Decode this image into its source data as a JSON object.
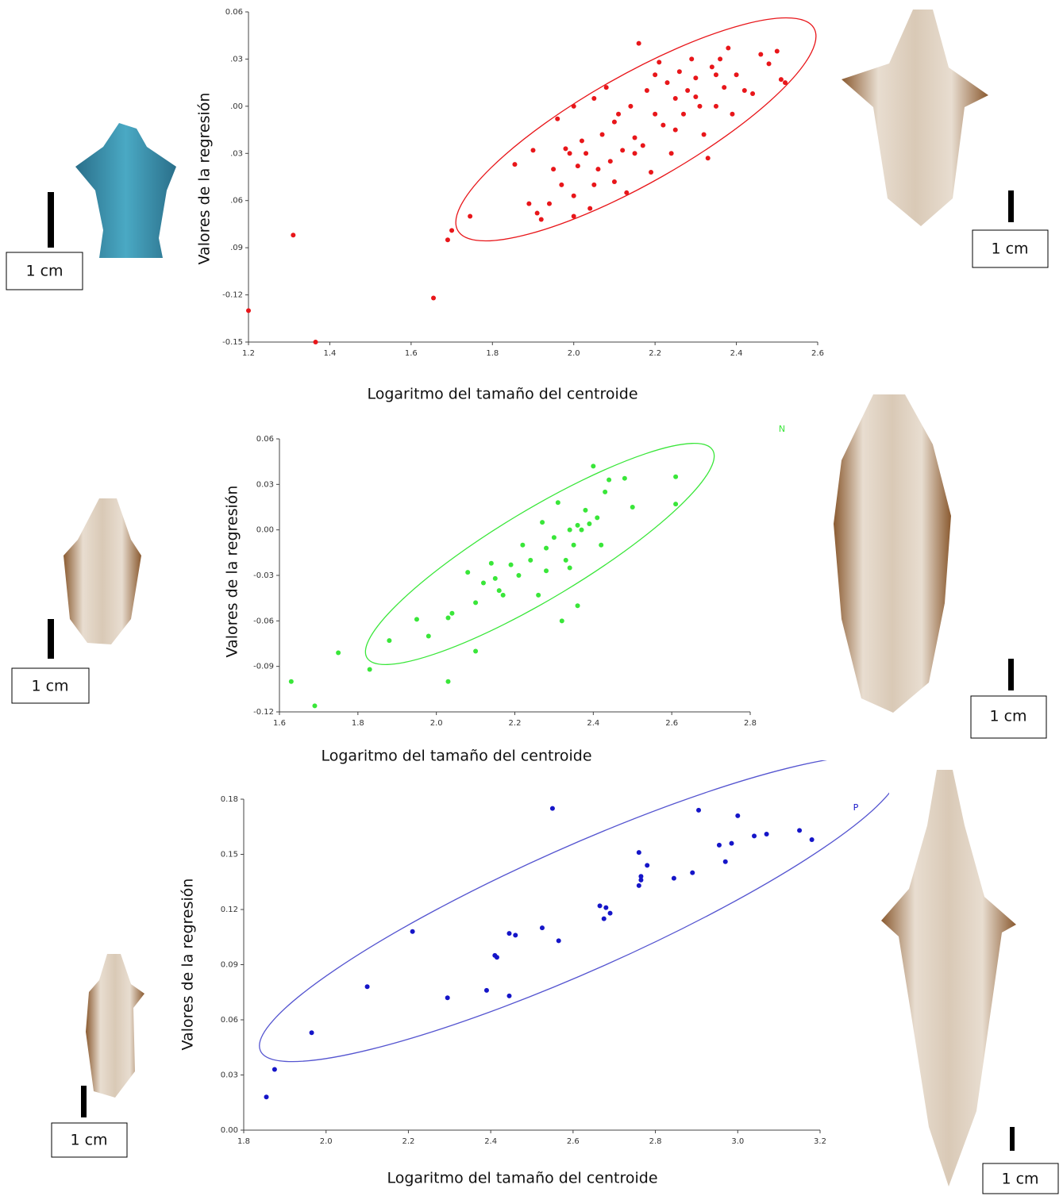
{
  "chart_data": [
    {
      "type": "scatter",
      "color": "#e8161a",
      "xlabel": "Logaritmo del tamaño del centroide",
      "ylabel": "Valores de la regresión",
      "xlim": [
        1.2,
        2.6
      ],
      "ylim": [
        -0.15,
        0.06
      ],
      "xticks": [
        1.2,
        1.4,
        1.6,
        1.8,
        {
          "value": 2,
          "label": "2.0"
        },
        2.2,
        2.4,
        2.6
      ],
      "yticks": [
        0.06,
        {
          "value": 0.03,
          "label": ".03"
        },
        {
          "value": 0,
          "label": ".00"
        },
        {
          "value": -0.03,
          "label": ".03"
        },
        {
          "value": -0.06,
          "label": ".06"
        },
        {
          "value": -0.09,
          "label": ".09"
        },
        -0.12,
        -0.15
      ],
      "x": [
        1.2,
        1.31,
        1.365,
        1.655,
        1.69,
        1.7,
        1.745,
        1.855,
        1.89,
        1.9,
        1.91,
        1.92,
        1.94,
        1.96,
        1.97,
        1.98,
        1.99,
        2.0,
        2.0,
        2.01,
        2.02,
        2.03,
        2.04,
        2.05,
        2.06,
        2.07,
        2.08,
        2.09,
        2.1,
        2.11,
        2.12,
        2.13,
        2.14,
        2.15,
        2.16,
        2.17,
        2.18,
        2.19,
        2.2,
        2.21,
        2.22,
        2.23,
        2.24,
        2.25,
        2.26,
        2.27,
        2.28,
        2.29,
        2.3,
        2.31,
        2.32,
        2.33,
        2.34,
        2.35,
        2.36,
        2.37,
        2.38,
        2.39,
        2.4,
        2.42,
        2.44,
        2.46,
        2.48,
        2.5,
        2.51,
        2.52,
        1.95,
        2.05,
        2.15,
        2.25,
        2.35,
        2.0,
        2.1,
        2.2,
        2.3
      ],
      "values": [
        -0.13,
        -0.082,
        -0.15,
        -0.122,
        -0.085,
        -0.079,
        -0.07,
        -0.037,
        -0.062,
        -0.028,
        -0.068,
        -0.072,
        -0.062,
        -0.008,
        -0.05,
        -0.027,
        -0.03,
        0,
        -0.057,
        -0.038,
        -0.022,
        -0.03,
        -0.065,
        0.005,
        -0.04,
        -0.018,
        0.012,
        -0.035,
        -0.01,
        -0.005,
        -0.028,
        -0.055,
        0,
        -0.02,
        0.04,
        -0.025,
        0.01,
        -0.042,
        0.02,
        0.028,
        -0.012,
        0.015,
        -0.03,
        0.005,
        0.022,
        -0.005,
        0.01,
        0.03,
        0.018,
        0,
        -0.018,
        -0.033,
        0.025,
        0.02,
        0.03,
        0.012,
        0.037,
        -0.005,
        0.02,
        0.01,
        0.008,
        0.033,
        0.027,
        0.035,
        0.017,
        0.015,
        -0.04,
        -0.05,
        -0.03,
        -0.015,
        0,
        -0.07,
        -0.048,
        -0.005,
        0.006
      ]
    },
    {
      "type": "scatter",
      "color": "#39e639",
      "annotation": "N",
      "xlabel": "Logaritmo del tamaño del centroide",
      "ylabel": "Valores de la regresión",
      "xlim": [
        1.6,
        2.8
      ],
      "ylim": [
        -0.12,
        0.06
      ],
      "xticks": [
        1.6,
        1.8,
        {
          "value": 2,
          "label": "2.0"
        },
        2.2,
        2.4,
        2.6,
        2.8
      ],
      "yticks": [
        0.06,
        0.03,
        {
          "value": 0,
          "label": "0.00"
        },
        -0.03,
        -0.06,
        -0.09,
        -0.12
      ],
      "x": [
        1.63,
        1.69,
        1.75,
        1.83,
        1.88,
        1.95,
        1.98,
        2.03,
        2.03,
        2.04,
        2.08,
        2.1,
        2.1,
        2.12,
        2.14,
        2.15,
        2.16,
        2.17,
        2.19,
        2.21,
        2.22,
        2.24,
        2.26,
        2.27,
        2.28,
        2.3,
        2.31,
        2.32,
        2.33,
        2.34,
        2.34,
        2.35,
        2.36,
        2.37,
        2.38,
        2.39,
        2.4,
        2.41,
        2.42,
        2.43,
        2.44,
        2.48,
        2.5,
        2.61,
        2.61,
        2.36,
        2.28
      ],
      "values": [
        -0.1,
        -0.116,
        -0.081,
        -0.092,
        -0.073,
        -0.059,
        -0.07,
        -0.058,
        -0.1,
        -0.055,
        -0.028,
        -0.048,
        -0.08,
        -0.035,
        -0.022,
        -0.032,
        -0.04,
        -0.043,
        -0.023,
        -0.03,
        -0.01,
        -0.02,
        -0.043,
        0.005,
        -0.012,
        -0.005,
        0.018,
        -0.06,
        -0.02,
        -0.025,
        0,
        -0.01,
        0.003,
        0,
        0.013,
        0.004,
        0.042,
        0.008,
        -0.01,
        0.025,
        0.033,
        0.034,
        0.015,
        0.035,
        0.017,
        -0.05,
        -0.027
      ]
    },
    {
      "type": "scatter",
      "color": "#1515c8",
      "annotation": "P",
      "xlabel": "Logaritmo del tamaño del centroide",
      "ylabel": "Valores de la regresión",
      "xlim": [
        1.8,
        3.2
      ],
      "ylim": [
        0,
        0.18
      ],
      "xticks": [
        1.8,
        {
          "value": 2,
          "label": "2.0"
        },
        2.2,
        2.4,
        2.6,
        2.8,
        {
          "value": 3,
          "label": "3.0"
        },
        3.2
      ],
      "yticks": [
        0.18,
        0.15,
        0.12,
        0.09,
        0.06,
        0.03,
        {
          "value": 0,
          "label": "0.00"
        }
      ],
      "x": [
        1.855,
        1.875,
        1.965,
        2.1,
        2.21,
        2.295,
        2.39,
        2.41,
        2.415,
        2.445,
        2.445,
        2.46,
        2.525,
        2.55,
        2.565,
        2.665,
        2.675,
        2.68,
        2.69,
        2.76,
        2.76,
        2.765,
        2.765,
        2.78,
        2.845,
        2.89,
        2.905,
        2.955,
        2.97,
        2.985,
        3.0,
        3.04,
        3.07,
        3.15,
        3.18
      ],
      "values": [
        0.018,
        0.033,
        0.053,
        0.078,
        0.108,
        0.072,
        0.076,
        0.095,
        0.094,
        0.073,
        0.107,
        0.106,
        0.11,
        0.175,
        0.103,
        0.122,
        0.115,
        0.121,
        0.118,
        0.151,
        0.133,
        0.138,
        0.136,
        0.144,
        0.137,
        0.14,
        0.174,
        0.155,
        0.146,
        0.156,
        0.171,
        0.16,
        0.161,
        0.163,
        0.158
      ]
    }
  ],
  "scale_bars": [
    "1 cm",
    "1 cm",
    "1 cm",
    "1 cm",
    "1 cm",
    "1 cm"
  ]
}
